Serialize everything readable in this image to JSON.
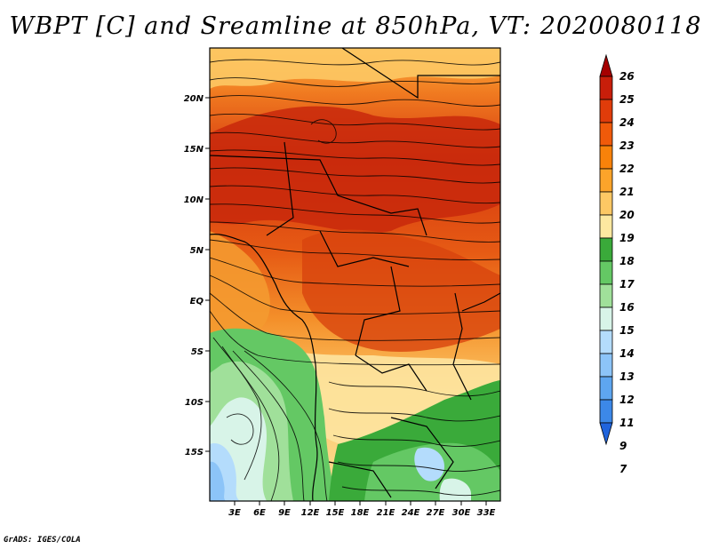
{
  "title": "WBPT [C] and Sreamline at 850hPa, VT: 2020080118",
  "credit": "GrADS: IGES/COLA",
  "map": {
    "lon_labels": [
      "3E",
      "6E",
      "9E",
      "12E",
      "15E",
      "18E",
      "21E",
      "24E",
      "27E",
      "30E",
      "33E"
    ],
    "lat_labels": [
      "20N",
      "15N",
      "10N",
      "5N",
      "EQ",
      "5S",
      "10S",
      "15S"
    ]
  },
  "colorbar": {
    "levels": [
      "26",
      "25",
      "24",
      "23",
      "22",
      "21",
      "20",
      "19",
      "18",
      "17",
      "16",
      "15",
      "14",
      "13",
      "12",
      "11",
      "9",
      "7"
    ],
    "colors": [
      "#a50000",
      "#c81e0a",
      "#e03c0a",
      "#f05a0a",
      "#f8820a",
      "#fca42a",
      "#fdc864",
      "#fde8a0",
      "#3aaa3a",
      "#64c864",
      "#a0e09a",
      "#d8f4e8",
      "#b4dcfc",
      "#8cc4f8",
      "#5ea6f0",
      "#3c88e8",
      "#2064dc"
    ]
  }
}
